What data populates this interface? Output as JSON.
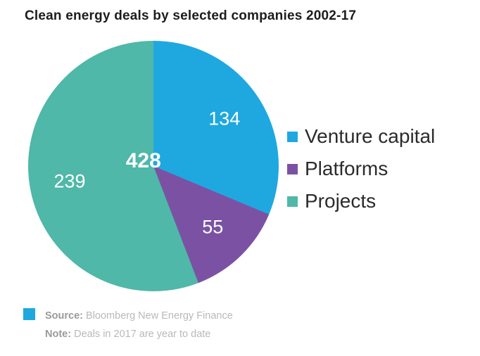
{
  "title": "Clean energy deals by selected companies 2002-17",
  "chart_data": {
    "type": "pie",
    "title": "Clean energy deals by selected companies 2002-17",
    "total": 428,
    "total_label": "428",
    "start_angle_deg": 0,
    "direction": "clockwise",
    "legend_position": "right",
    "slices": [
      {
        "label": "Venture capital",
        "value": 134,
        "color": "#1fa8e0"
      },
      {
        "label": "Platforms",
        "value": 55,
        "color": "#7b52a3"
      },
      {
        "label": "Projects",
        "value": 239,
        "color": "#4fb8a8"
      }
    ]
  },
  "footer": {
    "swatch_color": "#1fa8e0",
    "source_label": "Source:",
    "source_text": "Bloomberg New Energy Finance",
    "note_label": "Note:",
    "note_text": "Deals in 2017 are year to date"
  }
}
